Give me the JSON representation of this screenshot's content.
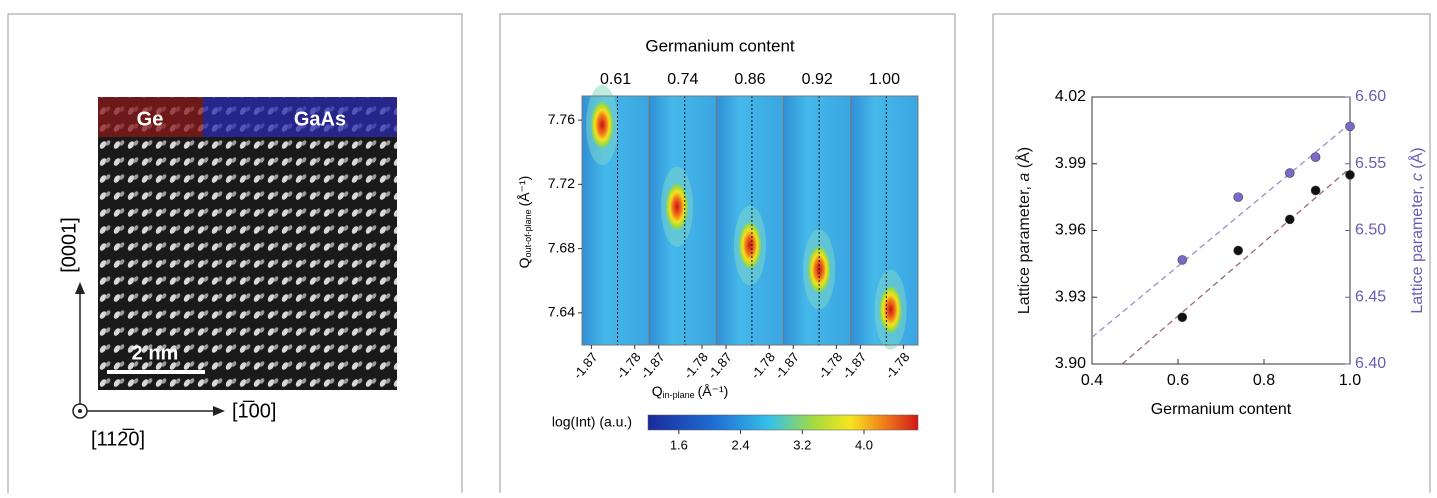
{
  "image_panel": {
    "labels": {
      "top_left": "Ge",
      "top_right": "GaAs",
      "scale_bar": "2 nm",
      "vertical_axis": "[0001]",
      "horizontal_axis": "[1̅00]",
      "out_of_plane_axis": "[112̅0]"
    }
  },
  "chart_data": [
    {
      "type": "heatmap",
      "title": "Germanium content",
      "categories": [
        "0.61",
        "0.74",
        "0.86",
        "0.92",
        "1.00"
      ],
      "peaks_x": [
        -1.848,
        -1.832,
        -1.82,
        -1.816,
        -1.807
      ],
      "peaks_y": [
        7.757,
        7.706,
        7.682,
        7.667,
        7.642
      ],
      "dashed_line_x": -1.816,
      "xlim": [
        -1.89,
        -1.75
      ],
      "xticks": [
        -1.87,
        -1.78
      ],
      "ylim": [
        7.62,
        7.775
      ],
      "yticks": [
        7.76,
        7.72,
        7.68,
        7.64
      ],
      "x_label": "Q",
      "x_label_sub": "in-plane",
      "x_label_unit": "(Å⁻¹)",
      "y_label": "Q",
      "y_label_sub": "out-of-plane",
      "y_label_unit": "(Å⁻¹)",
      "colorbar_label": "log(Int) (a.u.)",
      "clim": [
        1.2,
        4.7
      ],
      "cticks": [
        1.6,
        2.4,
        3.2,
        {
          "value": 4.0,
          "label": "4.0"
        }
      ]
    },
    {
      "type": "scatter",
      "x_label": "Germanium content",
      "y_label": "Lattice parameter, ",
      "y_label_var": "a",
      "y_label_unit": " (Å)",
      "y2_label": "Lattice parameter, ",
      "y2_label_var": "c",
      "y2_label_unit": " (Å)",
      "y2_color": "#6b5bb5",
      "xlim": [
        0.4,
        1.0
      ],
      "xticks": [
        {
          "value": 0.4,
          "label": "0.4"
        },
        0.6,
        0.8,
        {
          "value": 1.0,
          "label": "1.0"
        }
      ],
      "ylim": [
        3.9,
        4.02
      ],
      "yticks": [
        {
          "value": 3.9,
          "label": "3.90"
        },
        3.93,
        3.96,
        3.99,
        4.02
      ],
      "y2lim": [
        6.4,
        6.6
      ],
      "y2ticks": [
        {
          "value": 6.4,
          "label": "6.40"
        },
        6.45,
        {
          "value": 6.5,
          "label": "6.50"
        },
        6.55,
        {
          "value": 6.6,
          "label": "6.60"
        }
      ],
      "series": [
        {
          "color": "#111111",
          "x": [
            0.61,
            0.74,
            0.86,
            0.92,
            1.0
          ],
          "values": [
            3.921,
            3.951,
            3.965,
            3.978,
            3.985
          ]
        },
        {
          "color": "#7b68c8",
          "axis": "y2",
          "x": [
            0.61,
            0.74,
            0.86,
            0.92,
            1.0
          ],
          "values": [
            6.478,
            6.525,
            6.543,
            6.555,
            6.578
          ]
        }
      ],
      "fits": [
        {
          "color": "#9a6a6a",
          "x": [
            0.47,
            1.0
          ],
          "values": [
            3.9,
            3.988
          ]
        },
        {
          "color": "#a08ccc",
          "axis": "y2",
          "x": [
            0.4,
            1.0
          ],
          "values": [
            6.42,
            6.58
          ]
        }
      ]
    }
  ]
}
